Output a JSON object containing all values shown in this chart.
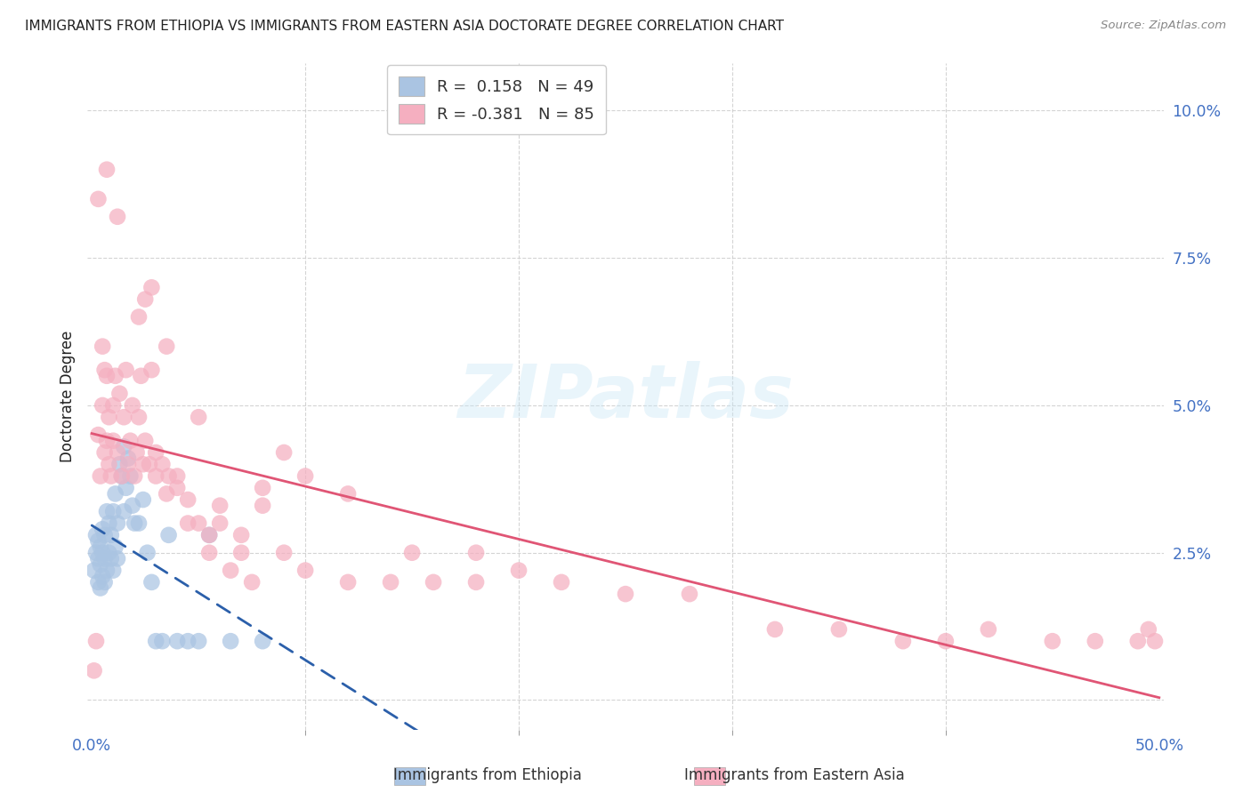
{
  "title": "IMMIGRANTS FROM ETHIOPIA VS IMMIGRANTS FROM EASTERN ASIA DOCTORATE DEGREE CORRELATION CHART",
  "source": "Source: ZipAtlas.com",
  "ylabel": "Doctorate Degree",
  "color_blue": "#aac4e2",
  "color_pink": "#f5afc0",
  "line_color_blue": "#2b5faa",
  "line_color_pink": "#e05575",
  "background_color": "#ffffff",
  "grid_color": "#d0d0d0",
  "tick_color": "#4472c4",
  "title_color": "#222222",
  "source_color": "#888888",
  "xlim": [
    -0.002,
    0.502
  ],
  "ylim": [
    -0.005,
    0.108
  ],
  "xticks": [
    0.0,
    0.5
  ],
  "xticklabels": [
    "0.0%",
    "50.0%"
  ],
  "xticks_minor": [
    0.1,
    0.2,
    0.3,
    0.4
  ],
  "yticks": [
    0.0,
    0.025,
    0.05,
    0.075,
    0.1
  ],
  "yticklabels": [
    "",
    "2.5%",
    "5.0%",
    "7.5%",
    "10.0%"
  ],
  "legend_label_blue": "R =  0.158   N = 49",
  "legend_label_pink": "R = -0.381   N = 85",
  "label_blue": "Immigrants from Ethiopia",
  "label_pink": "Immigrants from Eastern Asia",
  "blue_x": [
    0.001,
    0.002,
    0.002,
    0.003,
    0.003,
    0.003,
    0.004,
    0.004,
    0.004,
    0.005,
    0.005,
    0.005,
    0.006,
    0.006,
    0.006,
    0.007,
    0.007,
    0.008,
    0.008,
    0.009,
    0.009,
    0.01,
    0.01,
    0.011,
    0.011,
    0.012,
    0.012,
    0.013,
    0.014,
    0.015,
    0.015,
    0.016,
    0.017,
    0.018,
    0.019,
    0.02,
    0.022,
    0.024,
    0.026,
    0.028,
    0.03,
    0.033,
    0.036,
    0.04,
    0.045,
    0.05,
    0.055,
    0.065,
    0.08
  ],
  "blue_y": [
    0.022,
    0.025,
    0.028,
    0.02,
    0.024,
    0.027,
    0.019,
    0.023,
    0.026,
    0.021,
    0.025,
    0.029,
    0.02,
    0.024,
    0.028,
    0.022,
    0.032,
    0.025,
    0.03,
    0.024,
    0.028,
    0.022,
    0.032,
    0.026,
    0.035,
    0.024,
    0.03,
    0.04,
    0.038,
    0.043,
    0.032,
    0.036,
    0.041,
    0.038,
    0.033,
    0.03,
    0.03,
    0.034,
    0.025,
    0.02,
    0.01,
    0.01,
    0.028,
    0.01,
    0.01,
    0.01,
    0.028,
    0.01,
    0.01
  ],
  "pink_x": [
    0.001,
    0.002,
    0.003,
    0.004,
    0.005,
    0.005,
    0.006,
    0.006,
    0.007,
    0.007,
    0.008,
    0.008,
    0.009,
    0.01,
    0.01,
    0.011,
    0.012,
    0.013,
    0.014,
    0.015,
    0.016,
    0.017,
    0.018,
    0.019,
    0.02,
    0.021,
    0.022,
    0.023,
    0.024,
    0.025,
    0.027,
    0.028,
    0.03,
    0.033,
    0.036,
    0.04,
    0.045,
    0.05,
    0.055,
    0.06,
    0.07,
    0.08,
    0.09,
    0.1,
    0.12,
    0.14,
    0.16,
    0.18,
    0.2,
    0.22,
    0.25,
    0.28,
    0.32,
    0.35,
    0.38,
    0.4,
    0.42,
    0.45,
    0.47,
    0.49,
    0.495,
    0.498,
    0.022,
    0.025,
    0.028,
    0.03,
    0.035,
    0.04,
    0.045,
    0.05,
    0.055,
    0.06,
    0.065,
    0.07,
    0.075,
    0.08,
    0.09,
    0.1,
    0.12,
    0.15,
    0.18,
    0.003,
    0.007,
    0.012,
    0.035
  ],
  "pink_y": [
    0.005,
    0.01,
    0.045,
    0.038,
    0.06,
    0.05,
    0.042,
    0.056,
    0.055,
    0.044,
    0.048,
    0.04,
    0.038,
    0.05,
    0.044,
    0.055,
    0.042,
    0.052,
    0.038,
    0.048,
    0.056,
    0.04,
    0.044,
    0.05,
    0.038,
    0.042,
    0.048,
    0.055,
    0.04,
    0.044,
    0.04,
    0.056,
    0.042,
    0.04,
    0.038,
    0.036,
    0.034,
    0.048,
    0.028,
    0.033,
    0.025,
    0.033,
    0.025,
    0.022,
    0.02,
    0.02,
    0.02,
    0.025,
    0.022,
    0.02,
    0.018,
    0.018,
    0.012,
    0.012,
    0.01,
    0.01,
    0.012,
    0.01,
    0.01,
    0.01,
    0.012,
    0.01,
    0.065,
    0.068,
    0.07,
    0.038,
    0.035,
    0.038,
    0.03,
    0.03,
    0.025,
    0.03,
    0.022,
    0.028,
    0.02,
    0.036,
    0.042,
    0.038,
    0.035,
    0.025,
    0.02,
    0.085,
    0.09,
    0.082,
    0.06
  ]
}
